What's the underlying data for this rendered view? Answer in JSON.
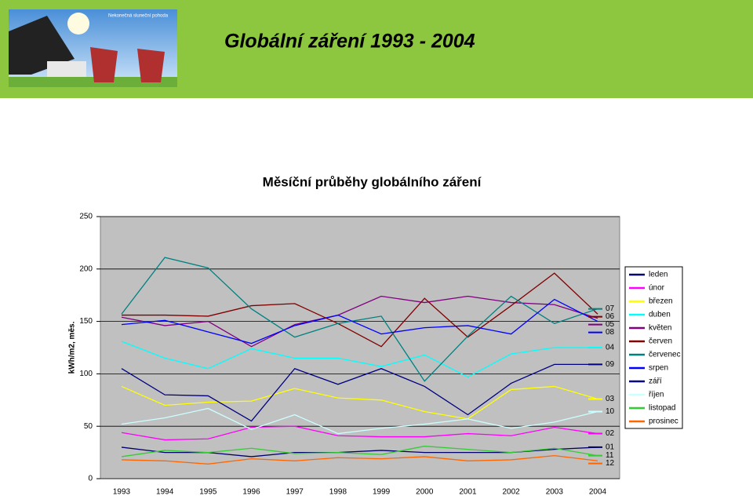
{
  "header_title": "Globální záření  1993 - 2004",
  "image_caption": "Nekonečná sluneční pohoda",
  "chart_data": {
    "type": "line",
    "title": "Měsíční průběhy globálního záření",
    "y_label": "kWh/m2, měs.",
    "categories": [
      "1993",
      "1994",
      "1995",
      "1996",
      "1997",
      "1998",
      "1999",
      "2000",
      "2001",
      "2002",
      "2003",
      "2004"
    ],
    "ylim": [
      0,
      250
    ],
    "yticks": [
      0,
      50,
      100,
      150,
      200,
      250
    ],
    "grid": true,
    "legend": "right",
    "series": [
      {
        "name": "leden",
        "end_label": "01",
        "color": "#00006b",
        "values": [
          30,
          25,
          25,
          21,
          25,
          25,
          27,
          25,
          25,
          25,
          28,
          30
        ]
      },
      {
        "name": "únor",
        "end_label": "02",
        "color": "#ff00ff",
        "values": [
          44,
          37,
          38,
          49,
          50,
          41,
          40,
          40,
          43,
          41,
          49,
          43
        ]
      },
      {
        "name": "březen",
        "end_label": "03",
        "color": "#ffff00",
        "values": [
          88,
          70,
          73,
          74,
          86,
          77,
          75,
          64,
          57,
          85,
          88,
          76
        ]
      },
      {
        "name": "duben",
        "end_label": "04",
        "color": "#00ffff",
        "values": [
          131,
          115,
          105,
          124,
          115,
          115,
          107,
          118,
          97,
          119,
          125,
          125
        ]
      },
      {
        "name": "květen",
        "end_label": "05",
        "color": "#800080",
        "values": [
          154,
          146,
          150,
          126,
          147,
          156,
          174,
          168,
          174,
          168,
          166,
          153
        ]
      },
      {
        "name": "červen",
        "end_label": "06",
        "color": "#800000",
        "values": [
          156,
          156,
          155,
          165,
          167,
          148,
          126,
          172,
          135,
          165,
          196,
          157
        ]
      },
      {
        "name": "červenec",
        "end_label": "07",
        "color": "#008080",
        "values": [
          157,
          211,
          201,
          162,
          135,
          148,
          155,
          93,
          136,
          174,
          148,
          162
        ]
      },
      {
        "name": "srpen",
        "end_label": "08",
        "color": "#0000ff",
        "values": [
          147,
          151,
          140,
          129,
          146,
          156,
          138,
          144,
          146,
          138,
          171,
          150
        ]
      },
      {
        "name": "září",
        "end_label": "09",
        "color": "#000080",
        "values": [
          105,
          80,
          79,
          55,
          105,
          90,
          105,
          88,
          61,
          91,
          109,
          109
        ]
      },
      {
        "name": "říjen",
        "end_label": "10",
        "color": "#ccffff",
        "values": [
          52,
          58,
          67,
          47,
          61,
          43,
          48,
          52,
          57,
          48,
          54,
          64
        ]
      },
      {
        "name": "listopad",
        "end_label": "11",
        "color": "#33cc33",
        "values": [
          21,
          27,
          25,
          29,
          24,
          25,
          23,
          31,
          28,
          25,
          29,
          22
        ]
      },
      {
        "name": "prosinec",
        "end_label": "12",
        "color": "#ff6600",
        "values": [
          18,
          17,
          14,
          19,
          17,
          20,
          19,
          21,
          17,
          18,
          22,
          17
        ]
      }
    ]
  }
}
